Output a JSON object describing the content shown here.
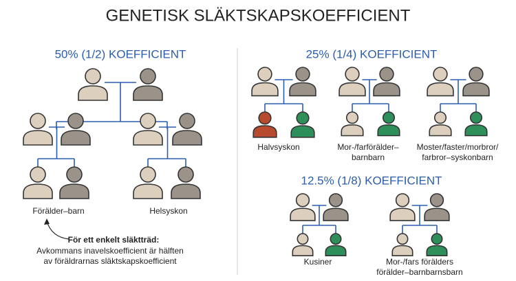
{
  "header": {
    "title": "GENETISK SLÄKTSKAPSKOEFFICIENT"
  },
  "sections": [
    {
      "heading": "50% (1/2) KOEFFICIENT",
      "groups": [
        {
          "label": [
            "Förälder–barn"
          ]
        },
        {
          "label": [
            "Helsyskon"
          ]
        }
      ]
    },
    {
      "heading": "25% (1/4) KOEFFICIENT",
      "groups": [
        {
          "label": [
            "Halvsyskon"
          ]
        },
        {
          "label": [
            "Mor-/farförälder–",
            "barnbarn"
          ]
        },
        {
          "label": [
            "Moster/faster/morbror/",
            "farbror–syskonbarn"
          ]
        }
      ]
    },
    {
      "heading": "12.5% (1/8) KOEFFICIENT",
      "groups": [
        {
          "label": [
            "Kusiner"
          ]
        },
        {
          "label": [
            "Mor-/fars förälders",
            "förälder–barnbarnsbarn"
          ]
        }
      ]
    }
  ],
  "note": {
    "title": "För ett enkelt släktträd:",
    "lines": [
      "Avkommans inavelskoefficient är hälften",
      "av föräldrarnas släktskapskoefficient"
    ]
  }
}
